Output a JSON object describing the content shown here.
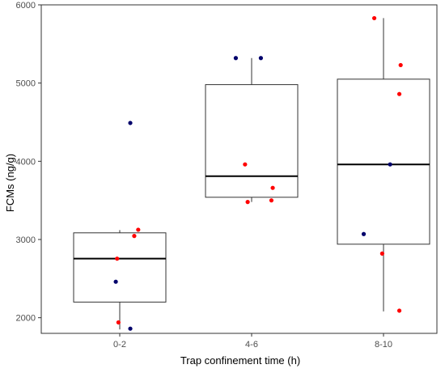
{
  "chart_data": {
    "type": "box",
    "xlabel": "Trap confinement time (h)",
    "ylabel": "FCMs (ng/g)",
    "ylim": [
      1800,
      6000
    ],
    "yticks": [
      2000,
      3000,
      4000,
      5000,
      6000
    ],
    "grid": false,
    "categories": [
      "0-2",
      "4-6",
      "8-10"
    ],
    "boxes": [
      {
        "category": "0-2",
        "whisker_low": 1850,
        "q1": 2200,
        "median": 2755,
        "q3": 3085,
        "whisker_high": 3120
      },
      {
        "category": "4-6",
        "whisker_low": 3480,
        "q1": 3540,
        "median": 3810,
        "q3": 4980,
        "whisker_high": 5320
      },
      {
        "category": "8-10",
        "whisker_low": 2080,
        "q1": 2940,
        "median": 3960,
        "q3": 5050,
        "whisker_high": 5830
      }
    ],
    "point_colors": {
      "navy": "#00006b",
      "red": "#ff0000"
    },
    "points": [
      {
        "category": "0-2",
        "y": 4490,
        "color": "navy",
        "jitter": 0.08
      },
      {
        "category": "0-2",
        "y": 3125,
        "color": "red",
        "jitter": 0.14
      },
      {
        "category": "0-2",
        "y": 3045,
        "color": "red",
        "jitter": 0.11
      },
      {
        "category": "0-2",
        "y": 2755,
        "color": "red",
        "jitter": -0.02
      },
      {
        "category": "0-2",
        "y": 2460,
        "color": "navy",
        "jitter": -0.03
      },
      {
        "category": "0-2",
        "y": 1940,
        "color": "red",
        "jitter": -0.01
      },
      {
        "category": "0-2",
        "y": 1860,
        "color": "navy",
        "jitter": 0.08
      },
      {
        "category": "4-6",
        "y": 5320,
        "color": "navy",
        "jitter": -0.12
      },
      {
        "category": "4-6",
        "y": 5320,
        "color": "navy",
        "jitter": 0.07
      },
      {
        "category": "4-6",
        "y": 3960,
        "color": "red",
        "jitter": -0.05
      },
      {
        "category": "4-6",
        "y": 3660,
        "color": "red",
        "jitter": 0.16
      },
      {
        "category": "4-6",
        "y": 3500,
        "color": "red",
        "jitter": 0.15
      },
      {
        "category": "4-6",
        "y": 3480,
        "color": "red",
        "jitter": -0.03
      },
      {
        "category": "8-10",
        "y": 5830,
        "color": "red",
        "jitter": -0.07
      },
      {
        "category": "8-10",
        "y": 5230,
        "color": "red",
        "jitter": 0.13
      },
      {
        "category": "8-10",
        "y": 4860,
        "color": "red",
        "jitter": 0.12
      },
      {
        "category": "8-10",
        "y": 3960,
        "color": "navy",
        "jitter": 0.05
      },
      {
        "category": "8-10",
        "y": 3070,
        "color": "navy",
        "jitter": -0.15
      },
      {
        "category": "8-10",
        "y": 2820,
        "color": "red",
        "jitter": -0.01
      },
      {
        "category": "8-10",
        "y": 2090,
        "color": "red",
        "jitter": 0.12
      }
    ]
  }
}
